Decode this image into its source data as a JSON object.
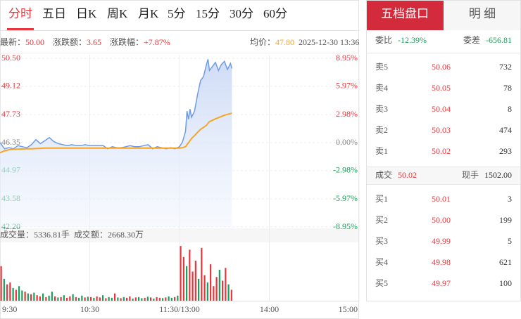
{
  "tabs": [
    "分时",
    "五日",
    "日K",
    "周K",
    "月K",
    "5分",
    "15分",
    "30分",
    "60分"
  ],
  "quote": {
    "latest": {
      "label": "最新：",
      "value": "50.00"
    },
    "change": {
      "label": "涨跌额：",
      "value": "3.65"
    },
    "change_pct": {
      "label": "涨跌幅：",
      "value": "+7.87%"
    },
    "avg": {
      "label": "均价：",
      "value": "47.80"
    },
    "time": "2025-12-30 13:36"
  },
  "volume_info": {
    "volume": "成交量：5336.81手",
    "amount": "成交额：2668.30万"
  },
  "chart_data": [
    {
      "type": "line",
      "x": [
        0,
        3,
        6,
        9,
        12,
        15,
        18,
        21,
        24,
        27,
        30,
        33,
        36,
        39,
        42,
        45,
        48,
        51,
        54,
        57,
        60,
        63,
        66,
        69,
        72,
        75,
        78,
        81,
        84,
        87,
        90,
        93,
        96,
        99,
        102,
        105,
        108,
        111,
        114,
        117,
        120,
        122,
        124,
        125,
        126,
        127,
        128,
        130,
        132,
        134,
        136,
        138,
        139,
        140,
        142,
        144,
        146,
        148,
        150,
        152,
        154,
        155
      ],
      "series": [
        {
          "color": "#6f9be8",
          "fill": true,
          "values": [
            46.35,
            46.05,
            46.1,
            46.05,
            46.2,
            46.15,
            46.1,
            46.25,
            46.5,
            46.3,
            46.45,
            46.6,
            46.4,
            46.3,
            46.25,
            46.2,
            46.25,
            46.2,
            46.2,
            46.25,
            46.2,
            46.2,
            46.2,
            46.2,
            46.05,
            46.15,
            46.1,
            46.1,
            46.15,
            46.2,
            46.15,
            46.15,
            46.2,
            46.25,
            46.05,
            46.15,
            46.1,
            46.05,
            46.1,
            46.05,
            46.15,
            46.4,
            46.9,
            47.9,
            47.5,
            48.0,
            47.6,
            47.9,
            48.7,
            49.4,
            49.6,
            50.2,
            50.45,
            49.9,
            50.1,
            50.3,
            49.9,
            50.2,
            50.35,
            49.95,
            50.25,
            50.0
          ]
        },
        {
          "color": "#f5a623",
          "fill": false,
          "values": [
            45.85,
            45.95,
            46.0,
            46.02,
            46.03,
            46.04,
            46.05,
            46.05,
            46.06,
            46.07,
            46.08,
            46.08,
            46.08,
            46.08,
            46.08,
            46.08,
            46.08,
            46.08,
            46.08,
            46.08,
            46.08,
            46.08,
            46.08,
            46.08,
            46.08,
            46.08,
            46.08,
            46.08,
            46.08,
            46.08,
            46.08,
            46.08,
            46.08,
            46.08,
            46.08,
            46.08,
            46.08,
            46.08,
            46.08,
            46.08,
            46.08,
            46.1,
            46.15,
            46.25,
            46.35,
            46.45,
            46.55,
            46.7,
            46.85,
            47.0,
            47.1,
            47.2,
            47.3,
            47.38,
            47.45,
            47.52,
            47.58,
            47.64,
            47.7,
            47.74,
            47.78,
            47.8
          ]
        }
      ],
      "xlim": [
        0,
        240
      ],
      "xticks": [
        {
          "value": 0,
          "label": "9:30"
        },
        {
          "value": 60,
          "label": "10:30"
        },
        {
          "value": 120,
          "label": "11:30/13:00"
        },
        {
          "value": 180,
          "label": "14:00"
        },
        {
          "value": 240,
          "label": "15:00"
        }
      ],
      "ylim": [
        42.2,
        50.5
      ],
      "yticks": [
        {
          "value": 50.5,
          "label": "50.50"
        },
        49.12,
        47.73,
        46.35,
        44.97,
        43.58,
        {
          "value": 42.2,
          "label": "42.20"
        }
      ],
      "y2lim": [
        -8.95,
        8.95
      ],
      "y2ticks": [
        {
          "value": 8.95,
          "label": "8.95%"
        },
        {
          "value": 5.97,
          "label": "5.97%"
        },
        {
          "value": 2.98,
          "label": "2.98%"
        },
        {
          "value": 0,
          "label": "0.00%"
        },
        {
          "value": -2.98,
          "label": "-2.98%"
        },
        {
          "value": -5.97,
          "label": "-5.97%"
        },
        {
          "value": -8.95,
          "label": "-8.95%"
        }
      ],
      "up_color": "#e8363c",
      "down_color": "#1aa05a",
      "flat_color": "#888888",
      "grid": true
    },
    {
      "type": "bar",
      "x": [
        0,
        2,
        4,
        6,
        8,
        10,
        12,
        14,
        16,
        18,
        20,
        22,
        24,
        26,
        28,
        30,
        32,
        34,
        36,
        38,
        40,
        42,
        44,
        46,
        48,
        50,
        52,
        54,
        56,
        58,
        60,
        62,
        64,
        66,
        68,
        70,
        72,
        74,
        76,
        78,
        80,
        82,
        84,
        86,
        88,
        90,
        92,
        94,
        96,
        98,
        100,
        102,
        104,
        106,
        108,
        110,
        112,
        114,
        116,
        118,
        120,
        122,
        124,
        126,
        128,
        130,
        132,
        134,
        136,
        138,
        140,
        142,
        144,
        146,
        148,
        150,
        152,
        154
      ],
      "values": [
        95,
        60,
        45,
        50,
        35,
        30,
        40,
        28,
        25,
        20,
        18,
        22,
        15,
        12,
        20,
        10,
        14,
        25,
        12,
        9,
        10,
        15,
        8,
        12,
        18,
        10,
        8,
        14,
        9,
        11,
        10,
        8,
        12,
        9,
        15,
        7,
        10,
        8,
        20,
        9,
        7,
        10,
        8,
        12,
        6,
        9,
        10,
        7,
        8,
        11,
        9,
        6,
        10,
        8,
        7,
        9,
        12,
        8,
        10,
        14,
        150,
        120,
        95,
        140,
        80,
        110,
        60,
        145,
        70,
        50,
        100,
        40,
        65,
        85,
        55,
        90,
        45,
        30
      ],
      "colors": [
        "#e8363c",
        "#1aa05a",
        "#e8363c",
        "#e8363c",
        "#1aa05a",
        "#e8363c",
        "#1aa05a",
        "#1aa05a",
        "#e8363c",
        "#1aa05a",
        "#e8363c",
        "#1aa05a",
        "#e8363c",
        "#e8363c",
        "#1aa05a",
        "#e8363c",
        "#1aa05a",
        "#1aa05a",
        "#e8363c",
        "#1aa05a",
        "#e8363c",
        "#1aa05a",
        "#e8363c",
        "#e8363c",
        "#1aa05a",
        "#e8363c",
        "#1aa05a",
        "#1aa05a",
        "#e8363c",
        "#1aa05a",
        "#e8363c",
        "#1aa05a",
        "#e8363c",
        "#e8363c",
        "#1aa05a",
        "#e8363c",
        "#1aa05a",
        "#1aa05a",
        "#e8363c",
        "#1aa05a",
        "#e8363c",
        "#1aa05a",
        "#e8363c",
        "#e8363c",
        "#1aa05a",
        "#e8363c",
        "#1aa05a",
        "#1aa05a",
        "#e8363c",
        "#1aa05a",
        "#e8363c",
        "#1aa05a",
        "#e8363c",
        "#e8363c",
        "#1aa05a",
        "#e8363c",
        "#1aa05a",
        "#1aa05a",
        "#e8363c",
        "#1aa05a",
        "#e8363c",
        "#e8363c",
        "#1aa05a",
        "#e8363c",
        "#e8363c",
        "#e8363c",
        "#1aa05a",
        "#e8363c",
        "#e8363c",
        "#1aa05a",
        "#e8363c",
        "#e8363c",
        "#e8363c",
        "#1aa05a",
        "#e8363c",
        "#e8363c",
        "#1aa05a",
        "#e8363c"
      ],
      "xlim": [
        0,
        240
      ],
      "ylim": [
        0,
        160
      ]
    }
  ],
  "order_book": {
    "tabs": [
      "五档盘口",
      "明 细"
    ],
    "ratio": {
      "label": "委比",
      "value": "-12.39%"
    },
    "diff": {
      "label": "委差",
      "value": "-656.81"
    },
    "asks": [
      [
        "卖5",
        "50.06",
        "732"
      ],
      [
        "卖4",
        "50.05",
        "78"
      ],
      [
        "卖3",
        "50.04",
        "8"
      ],
      [
        "卖2",
        "50.03",
        "474"
      ],
      [
        "卖1",
        "50.02",
        "293"
      ]
    ],
    "trade": {
      "label": "成交",
      "value": "50.02"
    },
    "last_vol": {
      "label": "现手",
      "value": "1502.00"
    },
    "bids": [
      [
        "买1",
        "50.01",
        "3"
      ],
      [
        "买2",
        "50.00",
        "199"
      ],
      [
        "买3",
        "49.99",
        "5"
      ],
      [
        "买4",
        "49.98",
        "621"
      ],
      [
        "买5",
        "49.97",
        "100"
      ]
    ]
  }
}
